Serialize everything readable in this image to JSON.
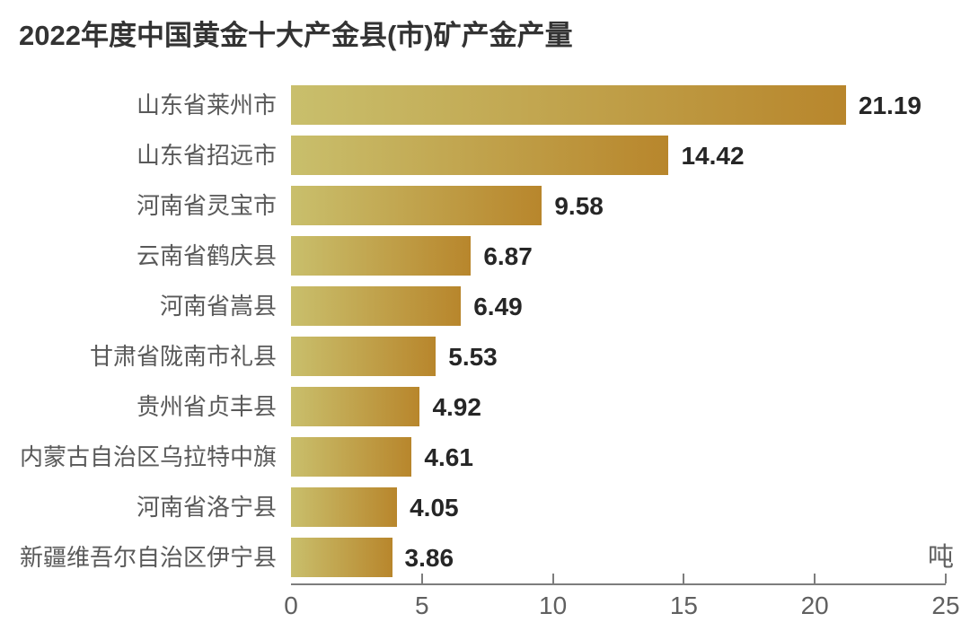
{
  "title": "2022年度中国黄金十大产金县(市)矿产金产量",
  "chart_data": {
    "type": "bar",
    "orientation": "horizontal",
    "title": "2022年度中国黄金十大产金县(市)矿产金产量",
    "unit": "吨",
    "categories": [
      "山东省莱州市",
      "山东省招远市",
      "河南省灵宝市",
      "云南省鹤庆县",
      "河南省嵩县",
      "甘肃省陇南市礼县",
      "贵州省贞丰县",
      "内蒙古自治区乌拉特中旗",
      "河南省洛宁县",
      "新疆维吾尔自治区伊宁县"
    ],
    "values": [
      21.19,
      14.42,
      9.58,
      6.87,
      6.49,
      5.53,
      4.92,
      4.61,
      4.05,
      3.86
    ],
    "value_labels": [
      "21.19",
      "14.42",
      "9.58",
      "6.87",
      "6.49",
      "5.53",
      "4.92",
      "4.61",
      "4.05",
      "3.86"
    ],
    "x_ticks": [
      0,
      5,
      10,
      15,
      20,
      25
    ],
    "xlim": [
      0,
      25
    ],
    "grid": false,
    "legend": false,
    "value_labels_shown": true,
    "colors": {
      "bar_gradient_start": "#c9bf6c",
      "bar_gradient_end": "#b8862c",
      "title_text": "#333333",
      "category_text": "#595959",
      "value_text": "#262626",
      "axis_line": "#7d7d7d",
      "tick_text": "#606060",
      "background": "#ffffff"
    }
  }
}
